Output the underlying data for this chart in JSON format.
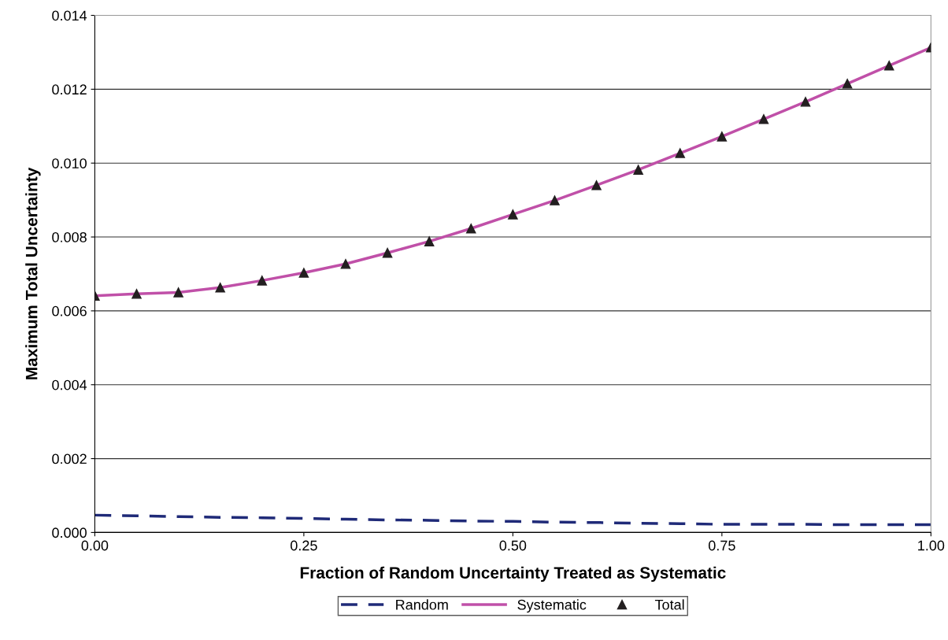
{
  "chart_data": {
    "type": "line",
    "xlabel": "Fraction of Random Uncertainty Treated as Systematic",
    "ylabel": "Maximum Total Uncertainty",
    "x": [
      0,
      0.05,
      0.1,
      0.15,
      0.2,
      0.25,
      0.3,
      0.35,
      0.4,
      0.45,
      0.5,
      0.55,
      0.6,
      0.65,
      0.7,
      0.75,
      0.8,
      0.85,
      0.9,
      0.95,
      1.0
    ],
    "series": [
      {
        "name": "Random",
        "color": "#1f2a78",
        "line_style": "dashed",
        "marker": "none",
        "values": [
          0.00047,
          0.00045,
          0.00043,
          0.00041,
          0.0004,
          0.00038,
          0.00036,
          0.00034,
          0.00033,
          0.00031,
          0.0003,
          0.00028,
          0.00027,
          0.00025,
          0.00024,
          0.00022,
          0.00022,
          0.00022,
          0.00021,
          0.00021,
          0.00021
        ]
      },
      {
        "name": "Systematic",
        "color": "#c050a8",
        "line_style": "solid",
        "marker": "none",
        "values": [
          0.00641,
          0.00646,
          0.0065,
          0.00663,
          0.00682,
          0.00703,
          0.00727,
          0.00757,
          0.00788,
          0.00823,
          0.00861,
          0.00899,
          0.0094,
          0.00982,
          0.01027,
          0.01072,
          0.01119,
          0.01166,
          0.01215,
          0.01264,
          0.01313
        ]
      },
      {
        "name": "Total",
        "color": "#231f20",
        "type": "scatter",
        "marker": "triangle",
        "values": [
          0.00641,
          0.00646,
          0.0065,
          0.00663,
          0.00682,
          0.00703,
          0.00727,
          0.00757,
          0.00788,
          0.00823,
          0.00861,
          0.00899,
          0.0094,
          0.00982,
          0.01027,
          0.01072,
          0.01119,
          0.01166,
          0.01215,
          0.01264,
          0.01313
        ]
      }
    ],
    "xlim": [
      0,
      1
    ],
    "xticks": [
      {
        "value": 0,
        "label": "0.00"
      },
      {
        "value": 0.25,
        "label": "0.25"
      },
      {
        "value": 0.5,
        "label": "0.50"
      },
      {
        "value": 0.75,
        "label": "0.75"
      },
      {
        "value": 1,
        "label": "1.00"
      }
    ],
    "ylim": [
      0,
      0.014
    ],
    "yticks": [
      {
        "value": 0,
        "label": "0.000"
      },
      {
        "value": 0.002,
        "label": "0.002"
      },
      {
        "value": 0.004,
        "label": "0.004"
      },
      {
        "value": 0.006,
        "label": "0.006"
      },
      {
        "value": 0.008,
        "label": "0.008"
      },
      {
        "value": 0.01,
        "label": "0.010"
      },
      {
        "value": 0.012,
        "label": "0.012"
      },
      {
        "value": 0.014,
        "label": "0.014"
      }
    ],
    "grid": "y",
    "legend": "bottom"
  }
}
